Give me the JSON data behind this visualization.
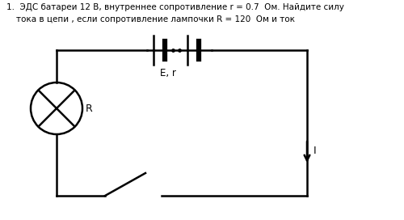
{
  "title_line1": "1.  ЭДС батареи 12 В, внутреннее сопротивление r = 0.7  Ом. Найдите силу",
  "title_line2": "тока в цепи , если сопротивление лампочки R = 120  Ом и ток",
  "label_E_r": "E, r",
  "label_R": "R",
  "label_I": "I",
  "bg_color": "#ffffff",
  "line_color": "#000000",
  "text_color": "#000000",
  "figsize": [
    5.0,
    2.72
  ],
  "dpi": 100
}
